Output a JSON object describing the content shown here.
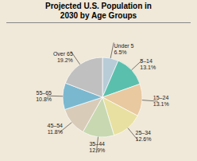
{
  "chart_data": {
    "type": "pie",
    "title": "Projected U.S. Population in\n2030 by Age Groups",
    "categories": [
      "Under 5",
      "5–14",
      "15–24",
      "25–34",
      "35–44",
      "45–54",
      "55–65",
      "Over 65"
    ],
    "values": [
      6.5,
      13.1,
      13.1,
      12.6,
      12.9,
      11.8,
      10.8,
      19.2
    ],
    "value_labels": [
      "6.5%",
      "13.1%",
      "13.1%",
      "12.6%",
      "12.9%",
      "11.8%",
      "10.8%",
      "19.2%"
    ],
    "colors": [
      "#b8ccd8",
      "#5bbfad",
      "#e8c9a0",
      "#e8e0a0",
      "#c8d8b0",
      "#d8cbb8",
      "#7ab8d0",
      "#c0c0c0"
    ],
    "data_labels": true
  }
}
